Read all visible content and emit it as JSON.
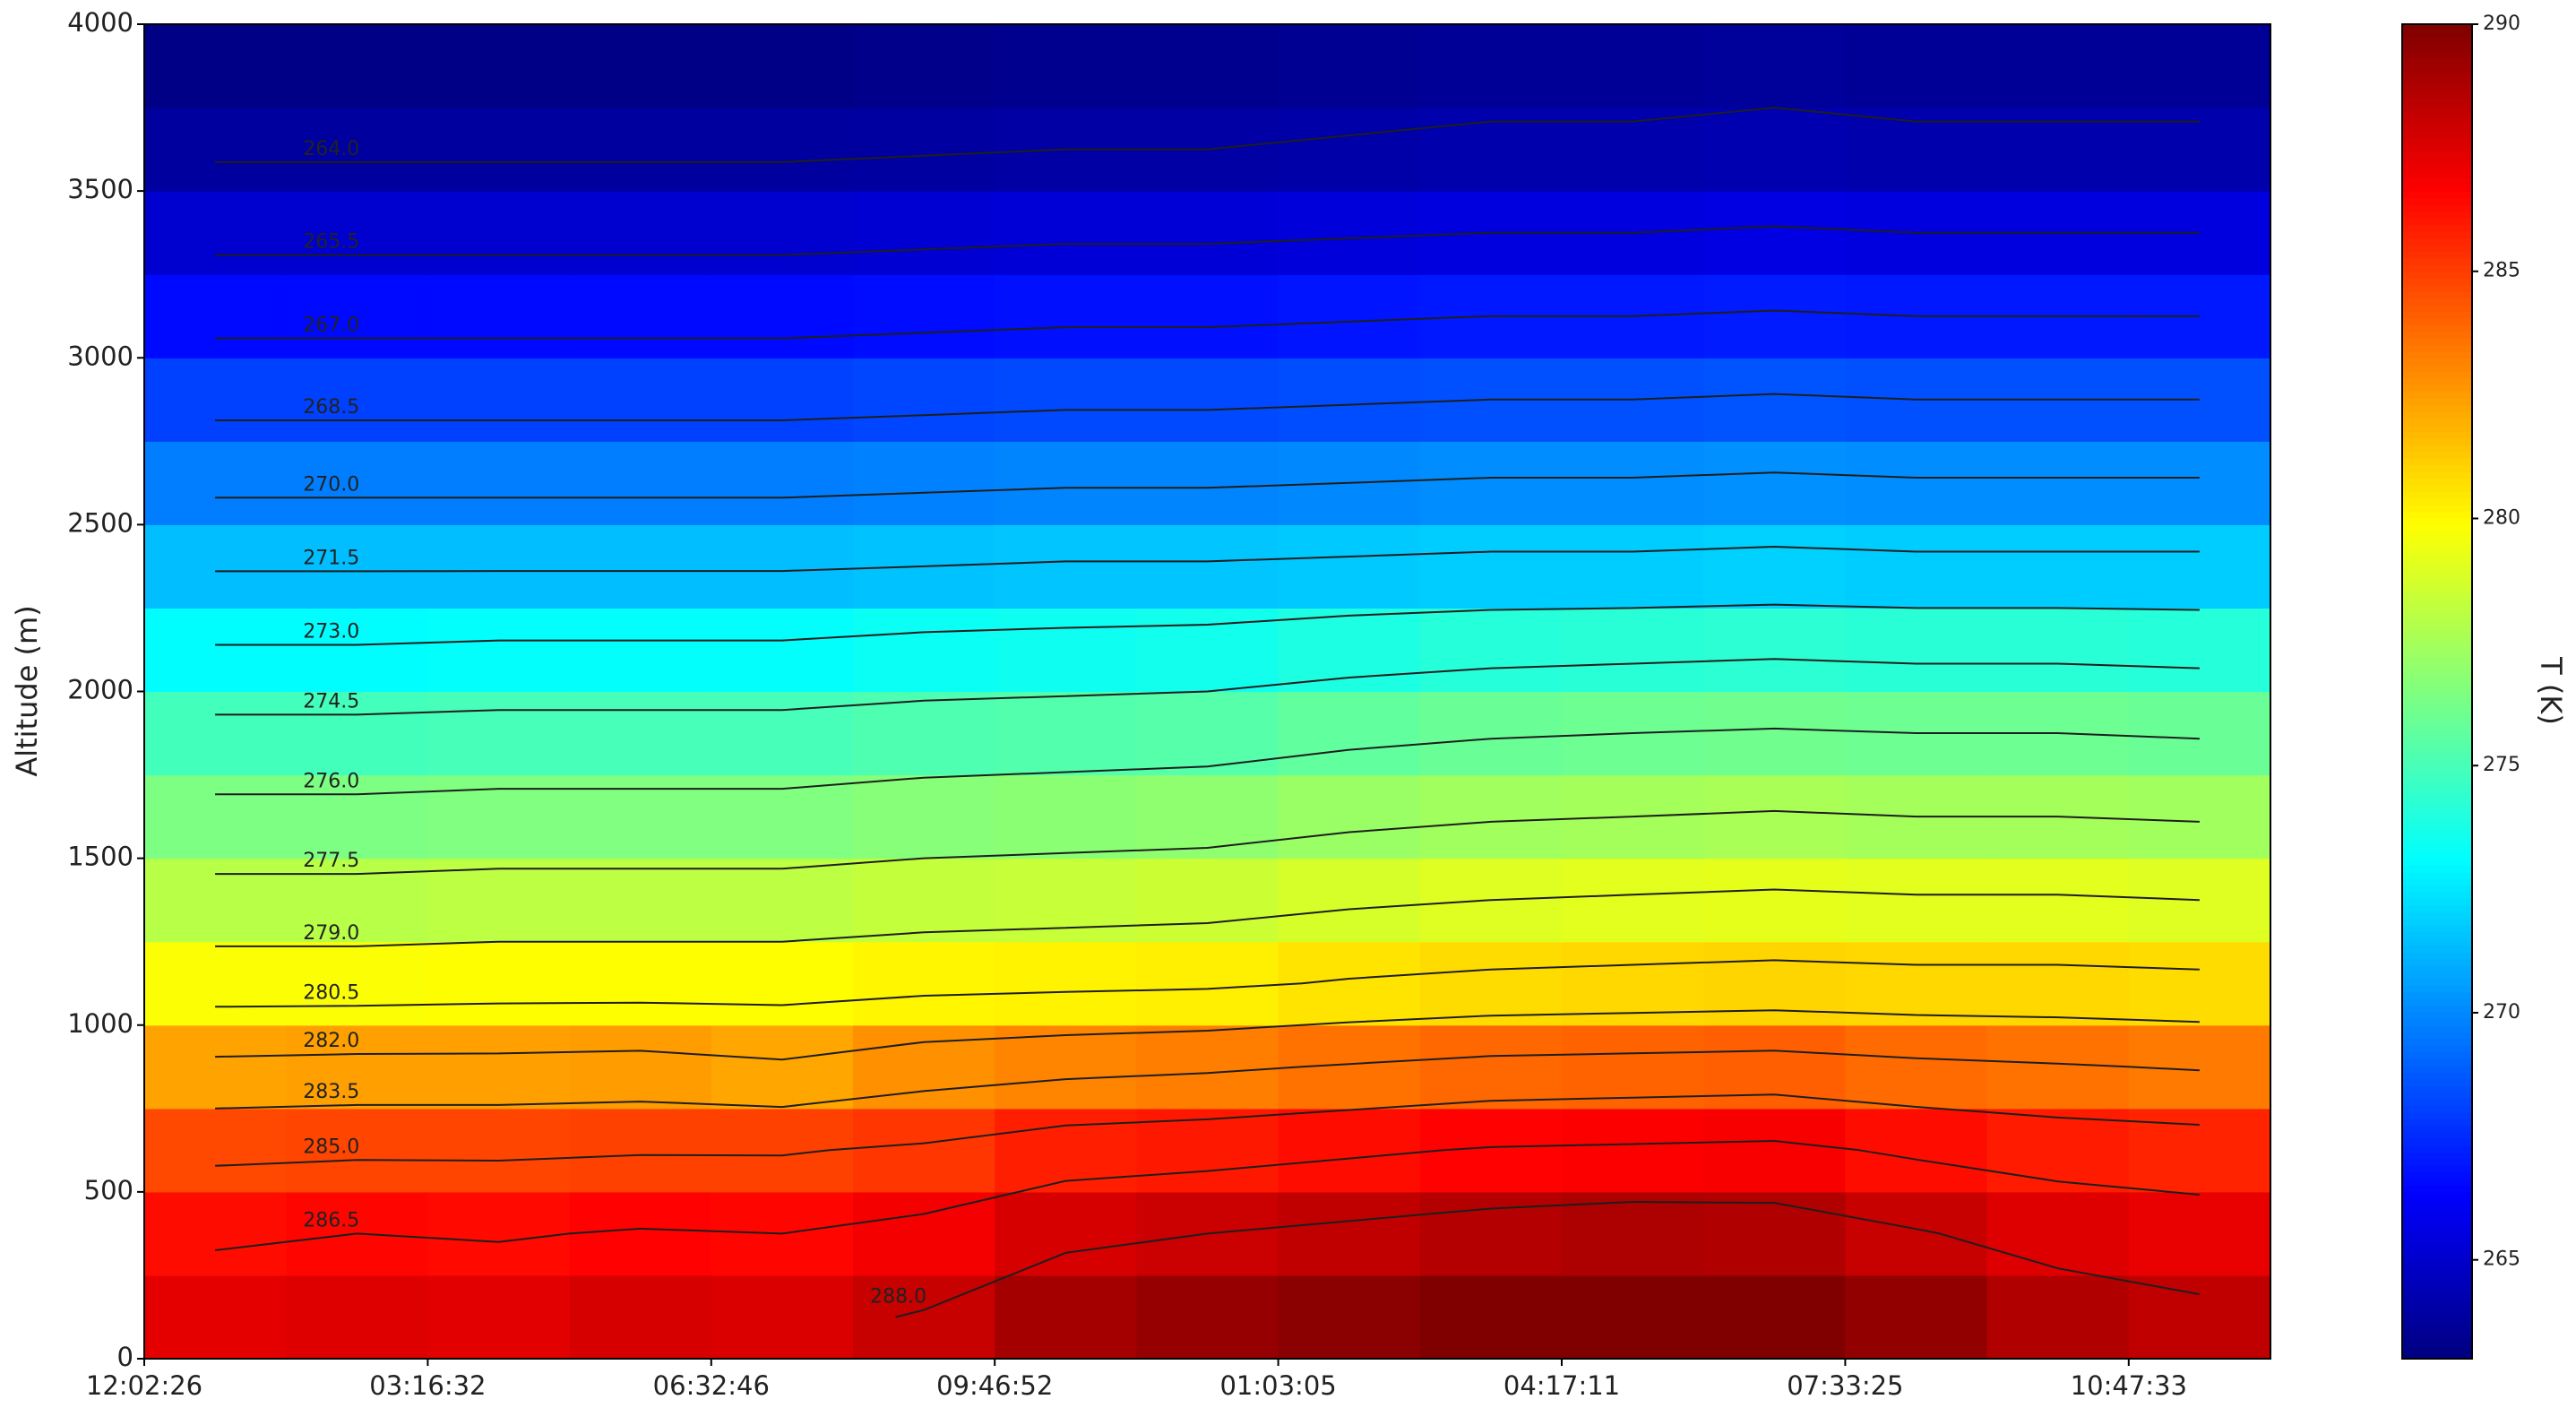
{
  "chart_data": {
    "type": "contour",
    "ylabel": "Altitude (m)",
    "colorbar_label": "T (K)",
    "colormap": "jet",
    "categories": [
      "12:02:26",
      null,
      "03:16:32",
      null,
      "06:32:46",
      null,
      "09:46:52",
      null,
      "01:03:05",
      null,
      "04:17:11",
      null,
      "07:33:25",
      null,
      "10:47:33"
    ],
    "y": [
      125,
      375,
      625,
      875,
      1125,
      1375,
      1625,
      1875,
      2125,
      2375,
      2625,
      2875,
      3125,
      3375,
      3625,
      3875
    ],
    "ylim": [
      0,
      4000
    ],
    "yticks": [
      0,
      500,
      1000,
      1500,
      2000,
      2500,
      3000,
      3500,
      4000
    ],
    "zlim": [
      263,
      290
    ],
    "zticks": [
      265,
      270,
      275,
      280,
      285,
      290
    ],
    "z": [
      [
        287.3,
        287.5,
        287.4,
        287.7,
        287.6,
        288.1,
        289.0,
        289.4,
        289.7,
        290.0,
        290.2,
        290.2,
        289.5,
        288.7,
        288.3
      ],
      [
        286.3,
        286.5,
        286.4,
        286.6,
        286.5,
        286.9,
        287.7,
        288.0,
        288.3,
        288.6,
        288.8,
        288.7,
        288.1,
        287.5,
        287.2
      ],
      [
        284.7,
        284.8,
        284.8,
        284.9,
        284.9,
        285.2,
        285.8,
        286.0,
        286.3,
        286.6,
        286.7,
        286.8,
        286.3,
        285.9,
        285.7
      ],
      [
        282.3,
        282.4,
        282.4,
        282.5,
        282.2,
        282.8,
        283.1,
        283.3,
        283.6,
        283.9,
        284.0,
        284.1,
        283.8,
        283.6,
        283.4
      ],
      [
        279.8,
        279.8,
        279.9,
        279.9,
        279.9,
        280.1,
        280.2,
        280.3,
        280.6,
        280.8,
        280.9,
        281.0,
        280.9,
        280.9,
        280.8
      ],
      [
        278.0,
        278.0,
        278.1,
        278.1,
        278.1,
        278.3,
        278.4,
        278.5,
        278.8,
        279.0,
        279.1,
        279.2,
        279.1,
        279.1,
        279.0
      ],
      [
        276.4,
        276.4,
        276.5,
        276.5,
        276.5,
        276.7,
        276.8,
        276.9,
        277.2,
        277.4,
        277.5,
        277.6,
        277.5,
        277.5,
        277.4
      ],
      [
        274.9,
        274.9,
        275.0,
        275.0,
        275.0,
        275.2,
        275.3,
        275.4,
        275.7,
        275.9,
        276.0,
        276.1,
        276.0,
        276.0,
        275.9
      ],
      [
        273.1,
        273.1,
        273.2,
        273.2,
        273.2,
        273.4,
        273.5,
        273.6,
        273.9,
        274.1,
        274.2,
        274.3,
        274.2,
        274.2,
        274.1
      ],
      [
        271.4,
        271.4,
        271.4,
        271.4,
        271.4,
        271.5,
        271.6,
        271.6,
        271.7,
        271.8,
        271.8,
        271.9,
        271.8,
        271.8,
        271.8
      ],
      [
        269.7,
        269.7,
        269.7,
        269.7,
        269.7,
        269.8,
        269.9,
        269.9,
        270.0,
        270.1,
        270.1,
        270.2,
        270.1,
        270.1,
        270.1
      ],
      [
        268.1,
        268.1,
        268.1,
        268.1,
        268.1,
        268.2,
        268.3,
        268.3,
        268.4,
        268.5,
        268.5,
        268.6,
        268.5,
        268.5,
        268.5
      ],
      [
        266.6,
        266.6,
        266.6,
        266.6,
        266.6,
        266.7,
        266.8,
        266.8,
        266.9,
        267.0,
        267.0,
        267.1,
        267.0,
        267.0,
        267.0
      ],
      [
        265.1,
        265.1,
        265.1,
        265.1,
        265.1,
        265.2,
        265.3,
        265.3,
        265.4,
        265.5,
        265.5,
        265.6,
        265.5,
        265.5,
        265.5
      ],
      [
        263.8,
        263.8,
        263.8,
        263.8,
        263.8,
        263.9,
        264.0,
        264.0,
        264.1,
        264.2,
        264.2,
        264.3,
        264.2,
        264.2,
        264.2
      ],
      [
        263.2,
        263.2,
        263.2,
        263.2,
        263.2,
        263.3,
        263.4,
        263.4,
        263.5,
        263.6,
        263.6,
        263.7,
        263.6,
        263.6,
        263.6
      ]
    ],
    "contour_levels": [
      264,
      265.5,
      267,
      268.5,
      270,
      271.5,
      273,
      274.5,
      276,
      277.5,
      279,
      280.5,
      282,
      283.5,
      285,
      286.5,
      288
    ],
    "contour_level_labels": [
      "264.0",
      "265.5",
      "267.0",
      "268.5",
      "270.0",
      "271.5",
      "273.0",
      "274.5",
      "276.0",
      "277.5",
      "279.0",
      "280.5",
      "282.0",
      "283.5",
      "285.0",
      "286.5",
      "288.0"
    ],
    "contour_color": "#1e1e1e"
  }
}
